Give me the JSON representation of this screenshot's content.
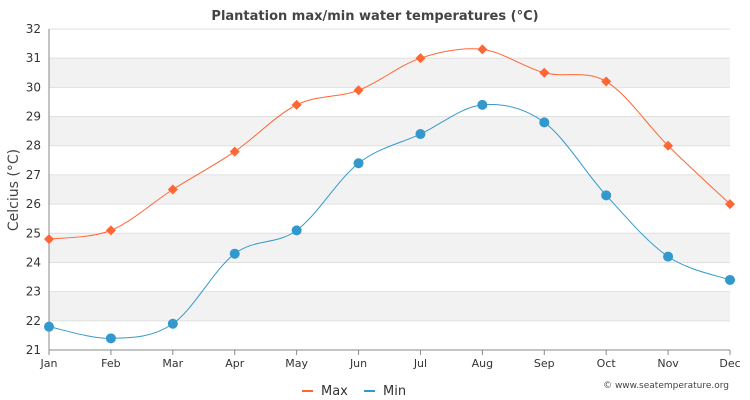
{
  "chart_data": {
    "type": "line",
    "title": "Plantation max/min water temperatures (°C)",
    "xlabel": "",
    "ylabel": "Celcius (°C)",
    "ylim": [
      21,
      32
    ],
    "yticks": [
      "21",
      "22",
      "23",
      "24",
      "25",
      "26",
      "27",
      "28",
      "29",
      "30",
      "31",
      "32"
    ],
    "categories": [
      "Jan",
      "Feb",
      "Mar",
      "Apr",
      "May",
      "Jun",
      "Jul",
      "Aug",
      "Sep",
      "Oct",
      "Nov",
      "Dec"
    ],
    "grid": true,
    "legend": "bottom-center",
    "series": [
      {
        "name": "Max",
        "color": "#ff6633",
        "marker": "diamond",
        "values": [
          24.8,
          25.1,
          26.5,
          27.8,
          29.4,
          29.9,
          31.0,
          31.3,
          30.5,
          30.2,
          28.0,
          26.0
        ]
      },
      {
        "name": "Min",
        "color": "#3399cc",
        "marker": "circle",
        "values": [
          21.8,
          21.4,
          21.9,
          24.3,
          25.1,
          27.4,
          28.4,
          29.4,
          28.8,
          26.3,
          24.2,
          23.4
        ]
      }
    ]
  },
  "credit": "© www.seatemperature.org"
}
